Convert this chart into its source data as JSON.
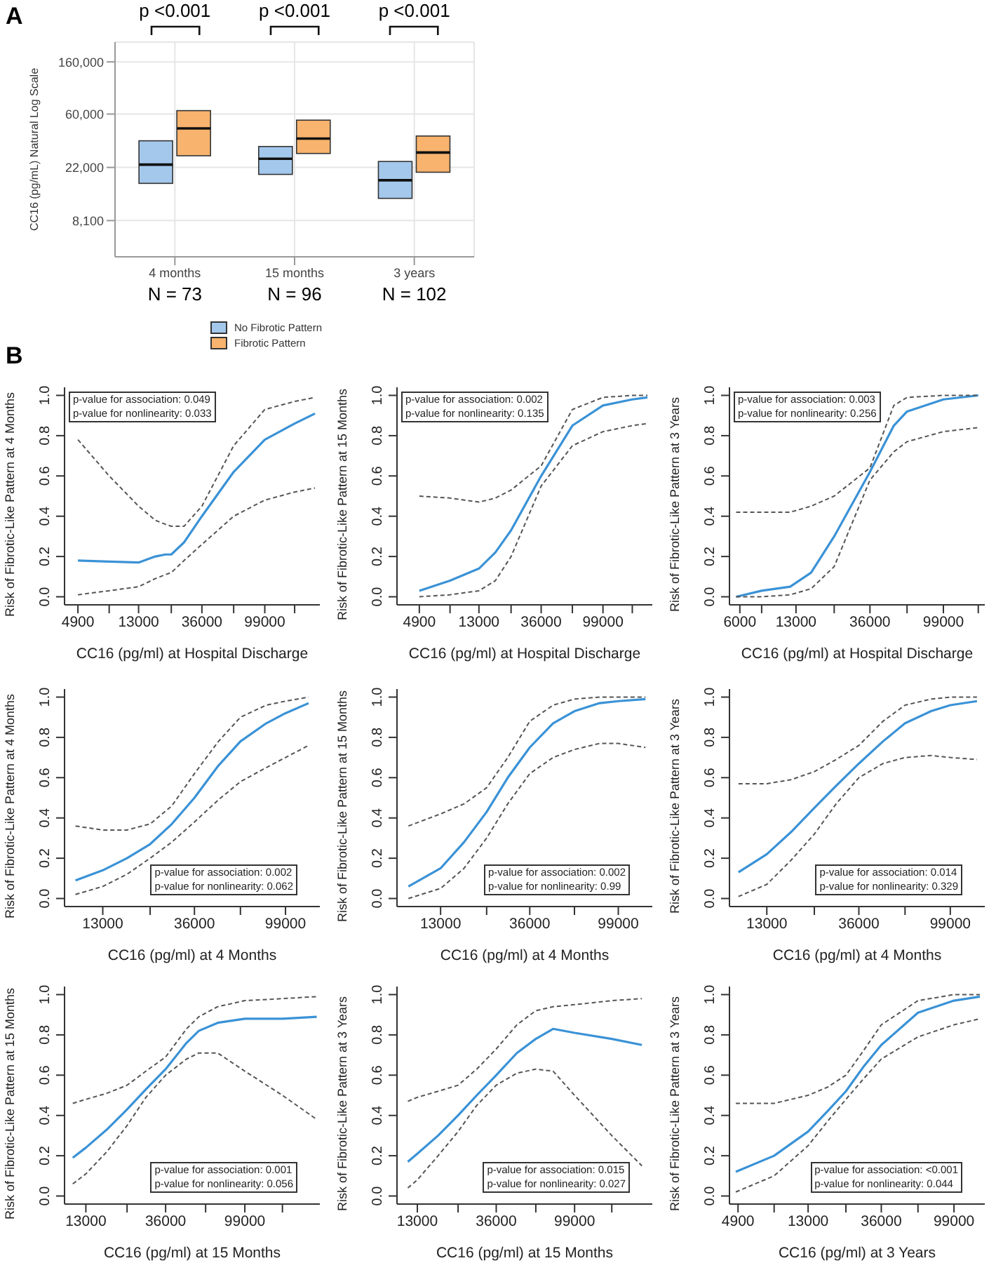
{
  "chart_data": [
    {
      "type": "box",
      "ylabel": "CC16 (pg/mL) Natural Log Scale",
      "categories": [
        "4 months",
        "15 months",
        "3 years"
      ],
      "log": true,
      "ylim": [
        4100,
        232000
      ],
      "yticks": [
        {
          "value": 8100,
          "label": "8,100"
        },
        {
          "value": 22000,
          "label": "22,000"
        },
        {
          "value": 60000,
          "label": "60,000"
        },
        {
          "value": 160000,
          "label": "160,000"
        }
      ],
      "grid": true,
      "legend": "bottom",
      "series": [
        {
          "name": "No Fibrotic Pattern",
          "color": "#a4c8ec",
          "boxes": [
            {
              "low": 16300,
              "q1": 16300,
              "median": 23200,
              "q3": 36300,
              "high": 36300
            },
            {
              "low": 19300,
              "q1": 19300,
              "median": 25900,
              "q3": 32600,
              "high": 32600
            },
            {
              "low": 12300,
              "q1": 12300,
              "median": 17300,
              "q3": 24600,
              "high": 24600
            }
          ]
        },
        {
          "name": "Fibrotic Pattern",
          "color": "#f8b36e",
          "boxes": [
            {
              "low": 27400,
              "q1": 27400,
              "median": 45800,
              "q3": 64000,
              "high": 64000
            },
            {
              "low": 28600,
              "q1": 28600,
              "median": 37800,
              "q3": 53500,
              "high": 53500
            },
            {
              "low": 20100,
              "q1": 20100,
              "median": 29100,
              "q3": 39700,
              "high": 39700
            }
          ]
        }
      ],
      "annotations": [
        "A",
        "p <0.001",
        "p <0.001",
        "p <0.001",
        "N = 73",
        "N = 96",
        "N = 102",
        "B"
      ]
    },
    {
      "type": "line",
      "xlabel": "CC16 (pg/ml) at Hospital Discharge",
      "ylabel": "Risk of Fibrotic-Like Pattern at 4 Months",
      "log": "x",
      "xlim": [
        3950,
        240000
      ],
      "xticks": [
        4900,
        {
          "value": 8100,
          "label": null
        },
        13000,
        {
          "value": 22000,
          "label": null
        },
        36000,
        {
          "value": 60000,
          "label": null
        },
        99000,
        {
          "value": 160000,
          "label": null
        }
      ],
      "ylim": [
        -0.04,
        1.04
      ],
      "yticks": [
        {
          "value": 0,
          "label": "0.0"
        },
        0.2,
        0.4,
        0.6,
        0.8,
        {
          "value": 1,
          "label": "1.0"
        }
      ],
      "line_style": "solid",
      "annotations": [
        "p-value for association: 0.049",
        "p-value for nonlinearity: 0.033"
      ],
      "x": [
        4900,
        8100,
        13000,
        17000,
        20000,
        22000,
        27000,
        36000,
        60000,
        99000,
        160000,
        222000
      ],
      "series": [
        {
          "color": "#3a92d6",
          "values": [
            0.18,
            0.175,
            0.17,
            0.2,
            0.21,
            0.21,
            0.27,
            0.4,
            0.62,
            0.78,
            0.86,
            0.91
          ]
        },
        {
          "color": "#555555",
          "line_style": "dashed",
          "values": [
            0.01,
            0.03,
            0.05,
            0.09,
            0.11,
            0.12,
            0.18,
            0.26,
            0.4,
            0.48,
            0.52,
            0.54
          ]
        },
        {
          "color": "#555555",
          "line_style": "dashed",
          "values": [
            0.78,
            0.6,
            0.45,
            0.38,
            0.36,
            0.35,
            0.35,
            0.45,
            0.75,
            0.93,
            0.97,
            0.99
          ]
        }
      ]
    },
    {
      "type": "line",
      "xlabel": "CC16 (pg/ml) at Hospital Discharge",
      "ylabel": "Risk of Fibrotic-Like Pattern at 15 Months",
      "log": "x",
      "xlim": [
        3400,
        222000
      ],
      "xticks": [
        4900,
        {
          "value": 8100,
          "label": null
        },
        13000,
        {
          "value": 22000,
          "label": null
        },
        36000,
        {
          "value": 60000,
          "label": null
        },
        99000,
        {
          "value": 160000,
          "label": null
        }
      ],
      "ylim": [
        -0.04,
        1.04
      ],
      "yticks": [
        {
          "value": 0,
          "label": "0.0"
        },
        0.2,
        0.4,
        0.6,
        0.8,
        {
          "value": 1,
          "label": "1.0"
        }
      ],
      "line_style": "solid",
      "annotations": [
        "p-value for association: 0.002",
        "p-value for nonlinearity: 0.135"
      ],
      "x": [
        4900,
        8100,
        13000,
        17000,
        22000,
        36000,
        60000,
        99000,
        160000,
        205000
      ],
      "series": [
        {
          "color": "#3a92d6",
          "values": [
            0.03,
            0.08,
            0.14,
            0.22,
            0.33,
            0.6,
            0.85,
            0.95,
            0.98,
            0.99
          ]
        },
        {
          "color": "#555555",
          "line_style": "dashed",
          "values": [
            0.0,
            0.01,
            0.03,
            0.08,
            0.2,
            0.55,
            0.75,
            0.82,
            0.85,
            0.86
          ]
        },
        {
          "color": "#555555",
          "line_style": "dashed",
          "values": [
            0.5,
            0.49,
            0.47,
            0.49,
            0.53,
            0.65,
            0.93,
            0.99,
            1.0,
            1.0
          ]
        }
      ]
    },
    {
      "type": "line",
      "xlabel": "CC16 (pg/ml) at Hospital Discharge",
      "ylabel": "Risk of Fibrotic-Like Pattern at 3 Years",
      "log": "x",
      "xlim": [
        5200,
        175000
      ],
      "xticks": [
        6000,
        {
          "value": 8100,
          "label": null
        },
        13000,
        {
          "value": 22000,
          "label": null
        },
        36000,
        {
          "value": 60000,
          "label": null
        },
        99000,
        {
          "value": 160000,
          "label": null
        }
      ],
      "ylim": [
        -0.04,
        1.04
      ],
      "yticks": [
        {
          "value": 0,
          "label": "0.0"
        },
        0.2,
        0.4,
        0.6,
        0.8,
        {
          "value": 1,
          "label": "1.0"
        }
      ],
      "line_style": "solid",
      "annotations": [
        "p-value for association: 0.003",
        "p-value for nonlinearity: 0.256"
      ],
      "x": [
        5700,
        8100,
        12000,
        16000,
        22000,
        36000,
        50000,
        60000,
        99000,
        160000
      ],
      "series": [
        {
          "color": "#3a92d6",
          "values": [
            0.0,
            0.03,
            0.05,
            0.12,
            0.3,
            0.62,
            0.85,
            0.92,
            0.98,
            1.0
          ]
        },
        {
          "color": "#555555",
          "line_style": "dashed",
          "values": [
            0.0,
            0.0,
            0.01,
            0.04,
            0.15,
            0.58,
            0.72,
            0.77,
            0.82,
            0.84
          ]
        },
        {
          "color": "#555555",
          "line_style": "dashed",
          "values": [
            0.42,
            0.42,
            0.42,
            0.45,
            0.5,
            0.64,
            0.95,
            0.99,
            1.0,
            1.0
          ]
        }
      ]
    },
    {
      "type": "line",
      "xlabel": "CC16 (pg/ml) at 4 Months",
      "ylabel": "Risk of Fibrotic-Like Pattern at 4 Months",
      "log": "x",
      "xlim": [
        8500,
        145000
      ],
      "xticks": [
        13000,
        {
          "value": 22000,
          "label": null
        },
        36000,
        {
          "value": 60000,
          "label": null
        },
        99000
      ],
      "ylim": [
        -0.04,
        1.04
      ],
      "yticks": [
        {
          "value": 0,
          "label": "0.0"
        },
        0.2,
        0.4,
        0.6,
        0.8,
        {
          "value": 1,
          "label": "1.0"
        }
      ],
      "line_style": "solid",
      "annotations": [
        "p-value for association: 0.002",
        "p-value for nonlinearity: 0.062"
      ],
      "x": [
        9600,
        13000,
        17000,
        22000,
        28000,
        36000,
        47000,
        60000,
        80000,
        99000,
        128000
      ],
      "series": [
        {
          "color": "#3a92d6",
          "values": [
            0.09,
            0.14,
            0.2,
            0.27,
            0.37,
            0.5,
            0.66,
            0.78,
            0.87,
            0.92,
            0.97
          ]
        },
        {
          "color": "#555555",
          "line_style": "dashed",
          "values": [
            0.02,
            0.06,
            0.12,
            0.2,
            0.28,
            0.38,
            0.49,
            0.58,
            0.65,
            0.7,
            0.76
          ]
        },
        {
          "color": "#555555",
          "line_style": "dashed",
          "values": [
            0.36,
            0.34,
            0.34,
            0.37,
            0.46,
            0.62,
            0.78,
            0.9,
            0.96,
            0.98,
            1.0
          ]
        }
      ]
    },
    {
      "type": "line",
      "xlabel": "CC16 (pg/ml) at 4 Months",
      "ylabel": "Risk of Fibrotic-Like Pattern at 15 Months",
      "log": "x",
      "xlim": [
        7900,
        146000
      ],
      "xticks": [
        13000,
        {
          "value": 22000,
          "label": null
        },
        36000,
        {
          "value": 60000,
          "label": null
        },
        99000
      ],
      "ylim": [
        -0.04,
        1.04
      ],
      "yticks": [
        {
          "value": 0,
          "label": "0.0"
        },
        0.2,
        0.4,
        0.6,
        0.8,
        {
          "value": 1,
          "label": "1.0"
        }
      ],
      "line_style": "solid",
      "annotations": [
        "p-value for association: 0.002",
        "p-value for nonlinearity: 0.99"
      ],
      "x": [
        9000,
        13000,
        17000,
        22000,
        28000,
        36000,
        47000,
        60000,
        80000,
        99000,
        135000
      ],
      "series": [
        {
          "color": "#3a92d6",
          "values": [
            0.06,
            0.15,
            0.28,
            0.43,
            0.6,
            0.75,
            0.87,
            0.93,
            0.97,
            0.98,
            0.99
          ]
        },
        {
          "color": "#555555",
          "line_style": "dashed",
          "values": [
            0.0,
            0.05,
            0.15,
            0.3,
            0.47,
            0.62,
            0.7,
            0.74,
            0.77,
            0.77,
            0.75
          ]
        },
        {
          "color": "#555555",
          "line_style": "dashed",
          "values": [
            0.36,
            0.42,
            0.47,
            0.55,
            0.7,
            0.88,
            0.96,
            0.99,
            1.0,
            1.0,
            1.0
          ]
        }
      ]
    },
    {
      "type": "line",
      "xlabel": "CC16 (pg/ml) at 4 Months",
      "ylabel": "Risk of Fibrotic-Like Pattern at 3 Years",
      "log": "x",
      "xlim": [
        8600,
        145000
      ],
      "xticks": [
        13000,
        {
          "value": 22000,
          "label": null
        },
        36000,
        {
          "value": 60000,
          "label": null
        },
        99000
      ],
      "ylim": [
        -0.04,
        1.04
      ],
      "yticks": [
        {
          "value": 0,
          "label": "0.0"
        },
        0.2,
        0.4,
        0.6,
        0.8,
        {
          "value": 1,
          "label": "1.0"
        }
      ],
      "line_style": "solid",
      "annotations": [
        "p-value for association: 0.014",
        "p-value for nonlinearity: 0.329"
      ],
      "x": [
        9500,
        13000,
        17000,
        22000,
        28000,
        36000,
        47000,
        60000,
        80000,
        99000,
        133000
      ],
      "series": [
        {
          "color": "#3a92d6",
          "values": [
            0.13,
            0.22,
            0.33,
            0.45,
            0.56,
            0.67,
            0.78,
            0.87,
            0.93,
            0.96,
            0.98
          ]
        },
        {
          "color": "#555555",
          "line_style": "dashed",
          "values": [
            0.01,
            0.07,
            0.19,
            0.32,
            0.47,
            0.6,
            0.67,
            0.7,
            0.71,
            0.7,
            0.69
          ]
        },
        {
          "color": "#555555",
          "line_style": "dashed",
          "values": [
            0.57,
            0.57,
            0.59,
            0.63,
            0.69,
            0.76,
            0.88,
            0.96,
            0.99,
            1.0,
            1.0
          ]
        }
      ]
    },
    {
      "type": "line",
      "xlabel": "CC16 (pg/ml) at 15 Months",
      "ylabel": "Risk of Fibrotic-Like Pattern at 15 Months",
      "log": "x",
      "xlim": [
        9900,
        258000
      ],
      "xticks": [
        13000,
        {
          "value": 22000,
          "label": null
        },
        36000,
        {
          "value": 60000,
          "label": null
        },
        99000,
        {
          "value": 160000,
          "label": null
        }
      ],
      "ylim": [
        -0.04,
        1.04
      ],
      "yticks": [
        {
          "value": 0,
          "label": "0.0"
        },
        0.2,
        0.4,
        0.6,
        0.8,
        {
          "value": 1,
          "label": "1.0"
        }
      ],
      "line_style": "solid",
      "annotations": [
        "p-value for association: 0.001",
        "p-value for nonlinearity: 0.056"
      ],
      "x": [
        11000,
        13000,
        17000,
        22000,
        28000,
        36000,
        47000,
        55000,
        70000,
        99000,
        160000,
        248000
      ],
      "series": [
        {
          "color": "#3a92d6",
          "values": [
            0.19,
            0.24,
            0.33,
            0.43,
            0.53,
            0.63,
            0.76,
            0.82,
            0.86,
            0.88,
            0.88,
            0.89
          ]
        },
        {
          "color": "#555555",
          "line_style": "dashed",
          "values": [
            0.06,
            0.11,
            0.22,
            0.35,
            0.49,
            0.6,
            0.68,
            0.71,
            0.71,
            0.62,
            0.5,
            0.38
          ]
        },
        {
          "color": "#555555",
          "line_style": "dashed",
          "values": [
            0.46,
            0.48,
            0.51,
            0.55,
            0.62,
            0.69,
            0.83,
            0.89,
            0.94,
            0.97,
            0.98,
            0.99
          ]
        }
      ]
    },
    {
      "type": "line",
      "xlabel": "CC16 (pg/ml) at 15 Months",
      "ylabel": "Risk of Fibrotic-Like Pattern at 3 Years",
      "log": "x",
      "xlim": [
        10000,
        270000
      ],
      "xticks": [
        13000,
        {
          "value": 22000,
          "label": null
        },
        36000,
        {
          "value": 60000,
          "label": null
        },
        99000,
        {
          "value": 160000,
          "label": null
        }
      ],
      "ylim": [
        -0.04,
        1.04
      ],
      "yticks": [
        {
          "value": 0,
          "label": "0.0"
        },
        0.2,
        0.4,
        0.6,
        0.8,
        {
          "value": 1,
          "label": "1.0"
        }
      ],
      "line_style": "solid",
      "annotations": [
        "p-value for association: 0.015",
        "p-value for nonlinearity: 0.027"
      ],
      "x": [
        11500,
        13000,
        17000,
        22000,
        28000,
        36000,
        47000,
        60000,
        75000,
        99000,
        160000,
        236000
      ],
      "series": [
        {
          "color": "#3a92d6",
          "values": [
            0.17,
            0.21,
            0.3,
            0.4,
            0.5,
            0.6,
            0.71,
            0.78,
            0.83,
            0.81,
            0.78,
            0.75
          ]
        },
        {
          "color": "#555555",
          "line_style": "dashed",
          "values": [
            0.04,
            0.08,
            0.2,
            0.32,
            0.45,
            0.55,
            0.61,
            0.63,
            0.62,
            0.5,
            0.3,
            0.15
          ]
        },
        {
          "color": "#555555",
          "line_style": "dashed",
          "values": [
            0.47,
            0.49,
            0.52,
            0.55,
            0.63,
            0.73,
            0.85,
            0.92,
            0.94,
            0.95,
            0.97,
            0.98
          ]
        }
      ]
    },
    {
      "type": "line",
      "xlabel": "CC16 (pg/ml) at 3 Years",
      "ylabel": "Risk of Fibrotic-Like Pattern at 3 Years",
      "log": "x",
      "xlim": [
        4350,
        152000
      ],
      "xticks": [
        4900,
        {
          "value": 8100,
          "label": null
        },
        13000,
        {
          "value": 22000,
          "label": null
        },
        36000,
        {
          "value": 60000,
          "label": null
        },
        99000
      ],
      "ylim": [
        -0.04,
        1.04
      ],
      "yticks": [
        {
          "value": 0,
          "label": "0.0"
        },
        0.2,
        0.4,
        0.6,
        0.8,
        {
          "value": 1,
          "label": "1.0"
        }
      ],
      "line_style": "solid",
      "annotations": [
        "p-value for association: <0.001",
        "p-value for nonlinearity: 0.044"
      ],
      "x": [
        4750,
        8100,
        13000,
        17000,
        22000,
        28000,
        36000,
        60000,
        99000,
        142000
      ],
      "series": [
        {
          "color": "#3a92d6",
          "values": [
            0.12,
            0.2,
            0.32,
            0.42,
            0.52,
            0.64,
            0.75,
            0.91,
            0.97,
            0.99
          ]
        },
        {
          "color": "#555555",
          "line_style": "dashed",
          "values": [
            0.02,
            0.1,
            0.25,
            0.37,
            0.48,
            0.58,
            0.68,
            0.79,
            0.85,
            0.88
          ]
        },
        {
          "color": "#555555",
          "line_style": "dashed",
          "values": [
            0.46,
            0.46,
            0.5,
            0.54,
            0.6,
            0.72,
            0.85,
            0.97,
            1.0,
            1.0
          ]
        }
      ]
    }
  ]
}
